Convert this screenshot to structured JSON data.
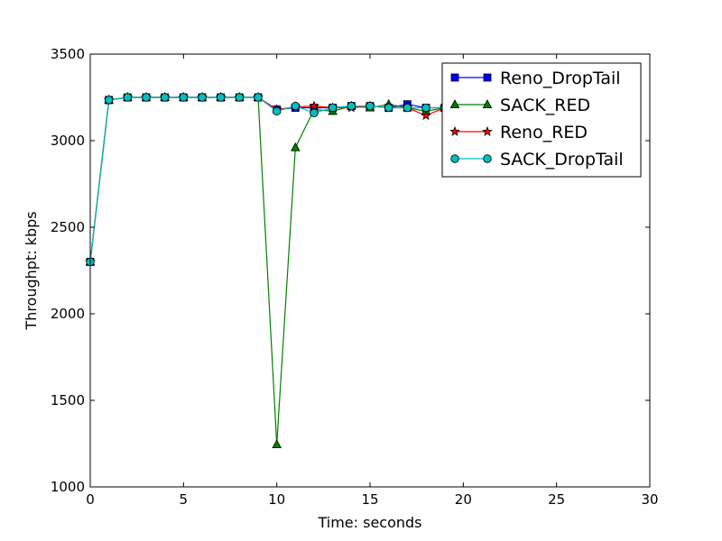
{
  "chart_data": {
    "type": "line",
    "title": "",
    "xlabel": "Time: seconds",
    "ylabel": "Throughpt: kbps",
    "xlim": [
      0,
      30
    ],
    "ylim": [
      1000,
      3500
    ],
    "xticks": [
      0,
      5,
      10,
      15,
      20,
      25,
      30
    ],
    "yticks": [
      1000,
      1500,
      2000,
      2500,
      3000,
      3500
    ],
    "grid": false,
    "legend_position": "top-right",
    "series": [
      {
        "name": "Reno_DropTail",
        "color": "#0000ff",
        "marker": "square",
        "x": [
          0,
          1,
          2,
          3,
          4,
          5,
          6,
          7,
          8,
          9,
          10,
          11,
          12,
          13,
          14,
          15,
          16,
          17,
          18,
          19,
          20,
          21
        ],
        "y": [
          2300,
          3235,
          3250,
          3250,
          3250,
          3250,
          3250,
          3250,
          3250,
          3250,
          3180,
          3190,
          3190,
          3190,
          3200,
          3200,
          3190,
          3210,
          3190,
          3190,
          3190,
          3190
        ]
      },
      {
        "name": "SACK_RED",
        "color": "#008000",
        "marker": "triangle",
        "x": [
          0,
          1,
          2,
          3,
          4,
          5,
          6,
          7,
          8,
          9,
          10,
          11,
          12,
          13,
          14,
          15,
          16,
          17,
          18,
          19,
          20,
          21
        ],
        "y": [
          2300,
          3235,
          3250,
          3250,
          3250,
          3250,
          3250,
          3250,
          3250,
          3250,
          1245,
          2960,
          3180,
          3170,
          3200,
          3190,
          3210,
          3190,
          3170,
          3190,
          3190,
          3190
        ]
      },
      {
        "name": "Reno_RED",
        "color": "#ff0000",
        "marker": "star",
        "x": [
          0,
          1,
          2,
          3,
          4,
          5,
          6,
          7,
          8,
          9,
          10,
          11,
          12,
          13,
          14,
          15,
          16,
          17,
          18,
          19,
          20,
          21
        ],
        "y": [
          2300,
          3235,
          3250,
          3250,
          3250,
          3250,
          3250,
          3250,
          3250,
          3250,
          3180,
          3195,
          3200,
          3190,
          3190,
          3200,
          3190,
          3190,
          3145,
          3190,
          3190,
          3190
        ]
      },
      {
        "name": "SACK_DropTail",
        "color": "#00bfbf",
        "marker": "circle",
        "x": [
          0,
          1,
          2,
          3,
          4,
          5,
          6,
          7,
          8,
          9,
          10,
          11,
          12,
          13,
          14,
          15,
          16,
          17,
          18,
          19,
          20,
          21
        ],
        "y": [
          2300,
          3235,
          3250,
          3250,
          3250,
          3250,
          3250,
          3250,
          3250,
          3250,
          3170,
          3200,
          3160,
          3190,
          3200,
          3200,
          3190,
          3190,
          3190,
          3190,
          3190,
          3190
        ]
      }
    ]
  }
}
